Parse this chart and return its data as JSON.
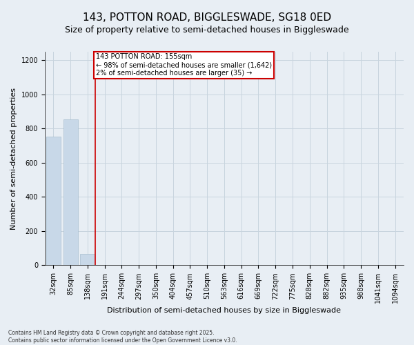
{
  "title1": "143, POTTON ROAD, BIGGLESWADE, SG18 0ED",
  "title2": "Size of property relative to semi-detached houses in Biggleswade",
  "xlabel": "Distribution of semi-detached houses by size in Biggleswade",
  "ylabel": "Number of semi-detached properties",
  "footer1": "Contains HM Land Registry data © Crown copyright and database right 2025.",
  "footer2": "Contains public sector information licensed under the Open Government Licence v3.0.",
  "bin_labels": [
    "32sqm",
    "85sqm",
    "138sqm",
    "191sqm",
    "244sqm",
    "297sqm",
    "350sqm",
    "404sqm",
    "457sqm",
    "510sqm",
    "563sqm",
    "616sqm",
    "669sqm",
    "722sqm",
    "775sqm",
    "828sqm",
    "882sqm",
    "935sqm",
    "988sqm",
    "1041sqm",
    "1094sqm"
  ],
  "bar_values": [
    755,
    855,
    65,
    0,
    0,
    0,
    0,
    0,
    0,
    0,
    0,
    0,
    0,
    0,
    0,
    0,
    0,
    0,
    0,
    0,
    0
  ],
  "bar_color": "#c8d8e8",
  "bar_edgecolor": "#a8bfd0",
  "grid_color": "#c8d4de",
  "property_line_x": 2.45,
  "annotation_line1": "143 POTTON ROAD: 155sqm",
  "annotation_line2": "← 98% of semi-detached houses are smaller (1,642)",
  "annotation_line3": "2% of semi-detached houses are larger (35) →",
  "annotation_box_color": "#ffffff",
  "annotation_border_color": "#cc0000",
  "vline_color": "#cc0000",
  "ylim": [
    0,
    1250
  ],
  "yticks": [
    0,
    200,
    400,
    600,
    800,
    1000,
    1200
  ],
  "bg_color": "#e8eef4",
  "title1_fontsize": 11,
  "title2_fontsize": 9,
  "ylabel_fontsize": 8,
  "xlabel_fontsize": 8,
  "tick_fontsize": 7,
  "footer_fontsize": 5.5,
  "annotation_fontsize": 7
}
